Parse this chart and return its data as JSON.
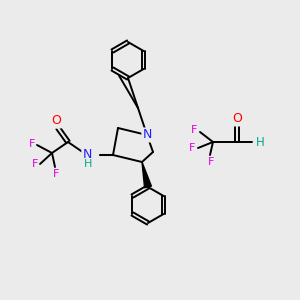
{
  "bg_color": "#ebebeb",
  "figsize": [
    3.0,
    3.0
  ],
  "dpi": 100,
  "atom_colors": {
    "C": "#000000",
    "N": "#2020ff",
    "O": "#ff0000",
    "F": "#e000e0",
    "H": "#00aa88"
  },
  "bond_lw": 1.4,
  "ring_r": 18
}
